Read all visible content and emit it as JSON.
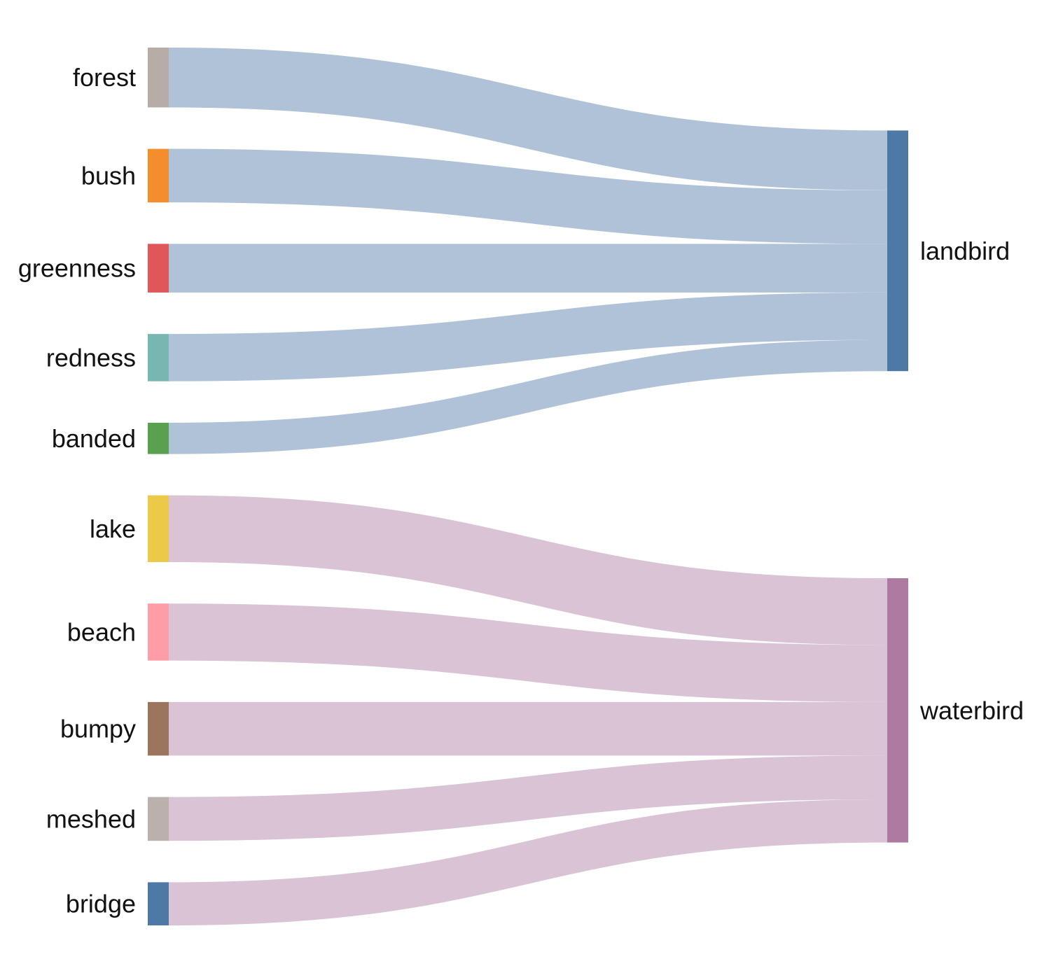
{
  "chart_data": {
    "type": "sankey",
    "sources": [
      {
        "name": "forest",
        "color": "#b8ada6"
      },
      {
        "name": "bush",
        "color": "#f28e2b"
      },
      {
        "name": "greenness",
        "color": "#e15759"
      },
      {
        "name": "redness",
        "color": "#76b7b2"
      },
      {
        "name": "banded",
        "color": "#59a14f"
      },
      {
        "name": "lake",
        "color": "#edc948"
      },
      {
        "name": "beach",
        "color": "#ff9da7"
      },
      {
        "name": "bumpy",
        "color": "#9c755f"
      },
      {
        "name": "meshed",
        "color": "#bab0ac"
      },
      {
        "name": "bridge",
        "color": "#4e79a7"
      }
    ],
    "targets": [
      {
        "name": "landbird",
        "color": "#4e79a7",
        "link_color": "#b0c2d8"
      },
      {
        "name": "waterbird",
        "color": "#af7aa1",
        "link_color": "#dac3d4"
      }
    ],
    "links": [
      {
        "source": "forest",
        "target": "landbird",
        "value": 86
      },
      {
        "source": "bush",
        "target": "landbird",
        "value": 77
      },
      {
        "source": "greenness",
        "target": "landbird",
        "value": 70
      },
      {
        "source": "redness",
        "target": "landbird",
        "value": 68
      },
      {
        "source": "banded",
        "target": "landbird",
        "value": 45
      },
      {
        "source": "lake",
        "target": "waterbird",
        "value": 96
      },
      {
        "source": "beach",
        "target": "waterbird",
        "value": 82
      },
      {
        "source": "bumpy",
        "target": "waterbird",
        "value": 77
      },
      {
        "source": "meshed",
        "target": "waterbird",
        "value": 63
      },
      {
        "source": "bridge",
        "target": "waterbird",
        "value": 62
      }
    ]
  }
}
